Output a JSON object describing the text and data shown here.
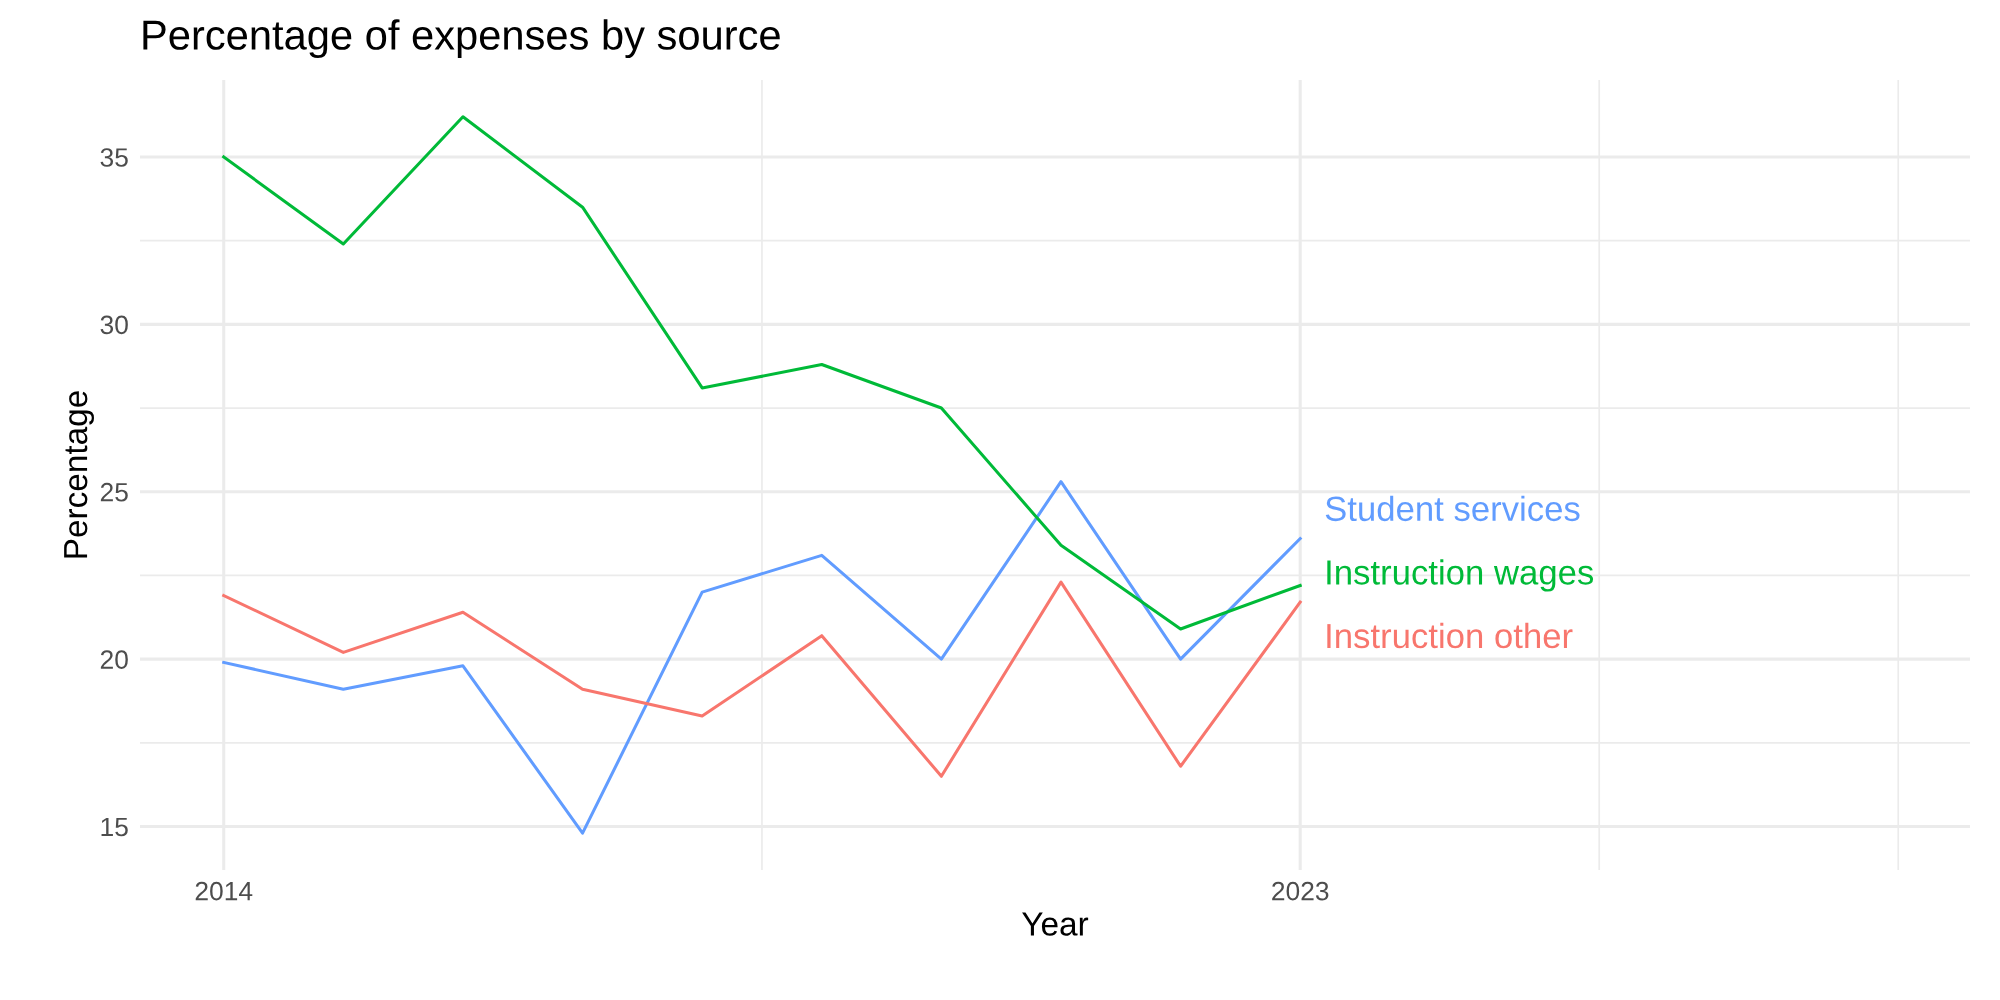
{
  "chart_data": {
    "type": "line",
    "title": "Percentage of expenses by source",
    "xlabel": "Year",
    "ylabel": "Percentage",
    "x": [
      2014,
      2015,
      2016,
      2017,
      2018,
      2019,
      2020,
      2021,
      2022,
      2023
    ],
    "series": [
      {
        "name": "Student services",
        "color": "#619cff",
        "values": [
          19.9,
          19.1,
          19.8,
          14.8,
          22.0,
          23.1,
          20.0,
          25.3,
          20.0,
          23.6
        ]
      },
      {
        "name": "Instruction wages",
        "color": "#00ba38",
        "values": [
          35.0,
          32.4,
          36.2,
          33.5,
          28.1,
          28.8,
          27.5,
          23.4,
          20.9,
          22.2
        ]
      },
      {
        "name": "Instruction other",
        "color": "#f8766d",
        "values": [
          21.9,
          20.2,
          21.4,
          19.1,
          18.3,
          20.7,
          16.5,
          22.3,
          16.8,
          21.7
        ]
      }
    ],
    "xlim": [
      2013.3,
      2028.6
    ],
    "ylim": [
      13.7,
      37.3
    ],
    "xticks": [
      2014,
      {
        "value": 2018.5,
        "label": null
      },
      2023,
      {
        "value": 2025.5,
        "label": null
      },
      {
        "value": 2028,
        "label": null
      }
    ],
    "yticks": [
      15,
      {
        "value": 17.5,
        "label": null
      },
      20,
      {
        "value": 22.5,
        "label": null
      },
      25,
      {
        "value": 27.5,
        "label": null
      },
      30,
      {
        "value": 32.5,
        "label": null
      },
      35
    ],
    "grid": true,
    "legend": false,
    "line_style": "solid",
    "marker": "none"
  }
}
